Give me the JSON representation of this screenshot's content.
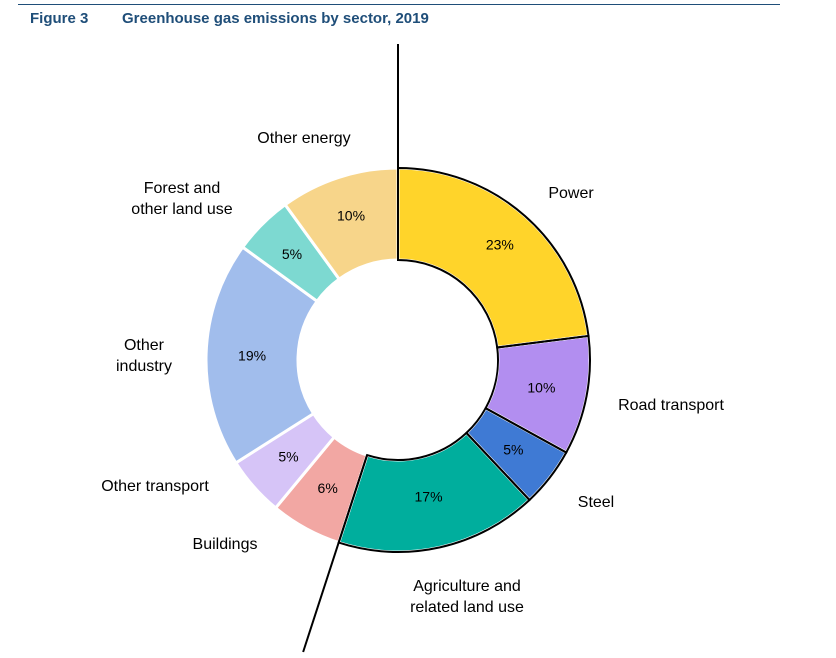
{
  "header": {
    "figure_number": "Figure 3",
    "title": "Greenhouse gas emissions by sector, 2019"
  },
  "chart_data": {
    "type": "pie",
    "style": "donut",
    "title": "Greenhouse gas emissions by sector, 2019",
    "unit": "%",
    "slices": [
      {
        "label": "Power",
        "value": 23,
        "color": "#ffd42a"
      },
      {
        "label": "Road transport",
        "value": 10,
        "color": "#b28ef0"
      },
      {
        "label": "Steel",
        "value": 5,
        "color": "#3f7ad4"
      },
      {
        "label": "Agriculture and related land use",
        "value": 17,
        "color": "#00ae9d"
      },
      {
        "label": "Buildings",
        "value": 6,
        "color": "#f2a7a3"
      },
      {
        "label": "Other transport",
        "value": 5,
        "color": "#d6c4f7"
      },
      {
        "label": "Other industry",
        "value": 19,
        "color": "#a1bdec"
      },
      {
        "label": "Forest and other land use",
        "value": 5,
        "color": "#7dd9d1"
      },
      {
        "label": "Other energy",
        "value": 10,
        "color": "#f7d58a"
      }
    ],
    "highlighted": [
      "Power",
      "Road transport",
      "Steel",
      "Agriculture and related land use"
    ]
  }
}
